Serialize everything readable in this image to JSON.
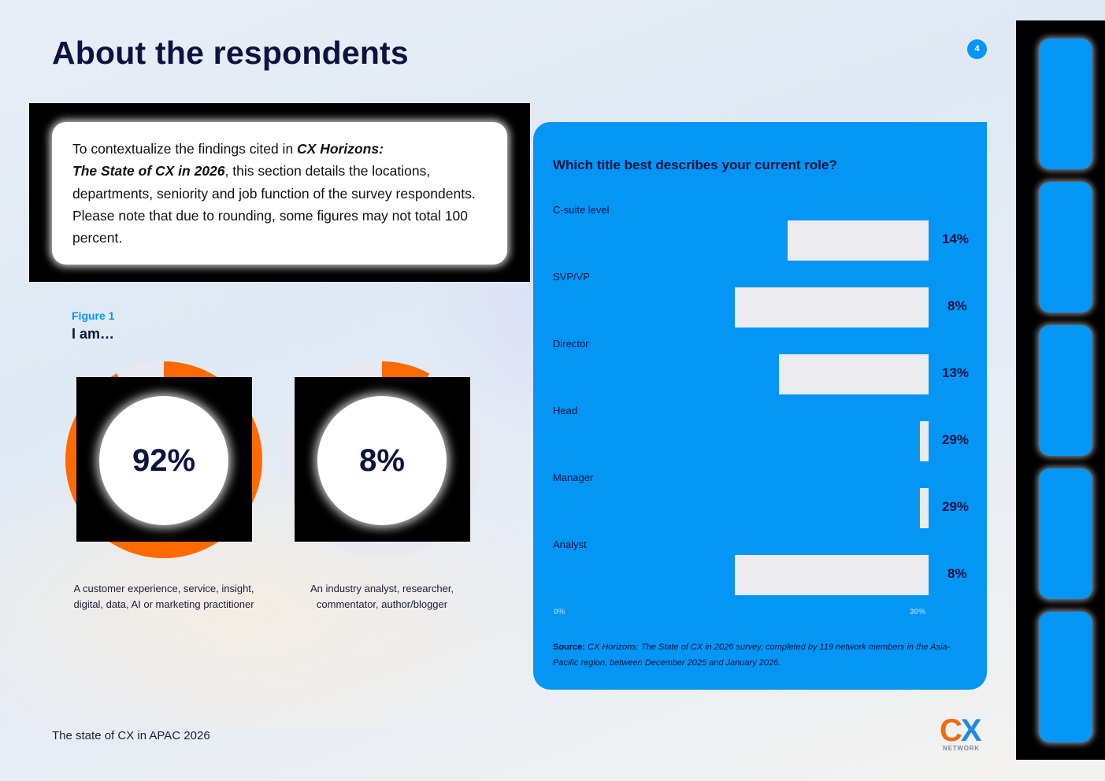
{
  "page": {
    "title": "About the respondents",
    "page_number": "4",
    "footer": "The state of CX in APAC 2026"
  },
  "intro": {
    "text_1": "To contextualize the findings cited in ",
    "text_bold_1": "CX Horizons:",
    "text_bold_2": "The State of CX in 2026",
    "text_2": ", this section details the locations, departments, seniority and job function of the survey respondents. Please note that due to rounding, some figures may not total 100 percent."
  },
  "figure": {
    "label": "Figure 1",
    "title": "I am…",
    "donuts": [
      {
        "value": 92,
        "display": "92%",
        "caption": "A customer experience, service, insight, digital, data, AI or marketing practitioner",
        "color": "#ff6a00"
      },
      {
        "value": 8,
        "display": "8%",
        "caption": "An industry analyst, researcher, commentator, author/blogger",
        "color": "#ff6a00"
      }
    ]
  },
  "chart_data": {
    "type": "bar",
    "title": "Which title best describes your current role?",
    "categories": [
      "C-suite level",
      "SVP/VP",
      "Director",
      "Head",
      "Manager",
      "Analyst"
    ],
    "values": [
      14,
      8,
      13,
      29,
      29,
      8
    ],
    "value_labels": [
      "14%",
      "8%",
      "13%",
      "29%",
      "29%",
      "8%"
    ],
    "xlim": [
      0,
      30
    ],
    "xtick_labels": [
      "0%",
      "30%"
    ],
    "orientation": "horizontal",
    "bar_color": "#ebebf0",
    "background": "#0596f5",
    "source_label": "Source:",
    "source_text": "CX Horizons: The State of CX in 2026 survey, completed by 119 network members in the Asia-Pacific region, between December 2025 and January 2026."
  },
  "logo": {
    "mark_c": "C",
    "mark_x": "X",
    "subtext": "NETWORK"
  },
  "colors": {
    "accent_blue": "#0596f5",
    "accent_orange": "#ff6a00",
    "navy": "#0c1340"
  }
}
